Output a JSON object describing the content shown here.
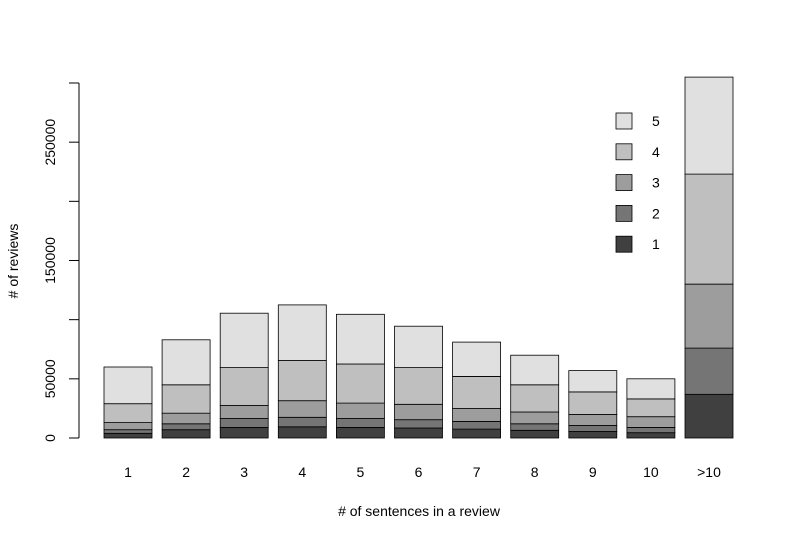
{
  "chart_data": {
    "type": "bar",
    "stacked": true,
    "title": "",
    "xlabel": "# of sentences in a review",
    "ylabel": "# of reviews",
    "categories": [
      "1",
      "2",
      "3",
      "4",
      "5",
      "6",
      "7",
      "8",
      "9",
      "10",
      ">10"
    ],
    "ylim": [
      0,
      300000
    ],
    "yticks": [
      0,
      50000,
      150000,
      250000
    ],
    "grid": false,
    "legend_position": "top-right",
    "series": [
      {
        "name": "1",
        "color": "#404040",
        "values": [
          4000,
          7000,
          9000,
          9500,
          9000,
          8500,
          7500,
          6500,
          5500,
          4500,
          37000
        ]
      },
      {
        "name": "2",
        "color": "#757575",
        "values": [
          3000,
          5000,
          7500,
          8000,
          7500,
          7000,
          6500,
          5500,
          5000,
          4500,
          39000
        ]
      },
      {
        "name": "3",
        "color": "#9d9d9d",
        "values": [
          6000,
          9000,
          11000,
          14000,
          13000,
          13000,
          11000,
          10000,
          9500,
          9000,
          54000
        ]
      },
      {
        "name": "4",
        "color": "#bfbfbf",
        "values": [
          16000,
          24000,
          32000,
          34000,
          33000,
          31000,
          27000,
          23000,
          19000,
          15000,
          93000
        ]
      },
      {
        "name": "5",
        "color": "#e0e0e0",
        "values": [
          31000,
          38000,
          46000,
          47000,
          42000,
          35000,
          29000,
          25000,
          18000,
          17000,
          82000
        ]
      }
    ]
  }
}
